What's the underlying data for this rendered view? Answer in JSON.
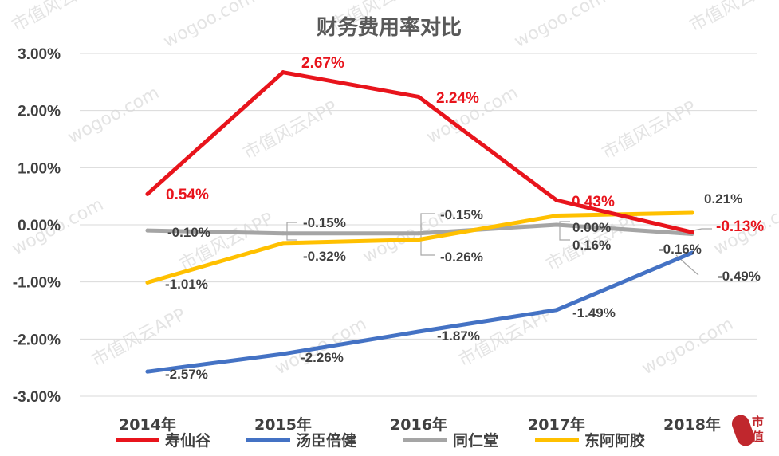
{
  "watermark": {
    "text": "市值风云APP",
    "site": "wogoo.com"
  },
  "logo": {
    "text": "市值"
  },
  "colors": {
    "寿仙谷": "#e8141c",
    "汤臣倍健": "#4472c4",
    "同仁堂": "#a5a5a5",
    "东阿阿胶": "#ffc000"
  },
  "chart_data": {
    "type": "line",
    "title": "财务费用率对比",
    "categories": [
      "2014年",
      "2015年",
      "2016年",
      "2017年",
      "2018年"
    ],
    "ylim": [
      -3.0,
      3.0
    ],
    "yticks": [
      "3.00%",
      "2.00%",
      "1.00%",
      "0.00%",
      "-1.00%",
      "-2.00%",
      "-3.00%"
    ],
    "grid": true,
    "legend_position": "bottom",
    "series": [
      {
        "name": "寿仙谷",
        "color": "#e8141c",
        "values": [
          0.54,
          2.67,
          2.24,
          0.43,
          -0.13
        ],
        "labels": [
          "0.54%",
          "2.67%",
          "2.24%",
          "0.43%",
          "-0.13%"
        ]
      },
      {
        "name": "汤臣倍健",
        "color": "#4472c4",
        "values": [
          -2.57,
          -2.26,
          -1.87,
          -1.49,
          -0.49
        ],
        "labels": [
          "-2.57%",
          "-2.26%",
          "-1.87%",
          "-1.49%",
          "-0.49%"
        ]
      },
      {
        "name": "同仁堂",
        "color": "#a5a5a5",
        "values": [
          -0.1,
          -0.15,
          -0.15,
          0.0,
          -0.16
        ],
        "labels": [
          "-0.10%",
          "-0.15%",
          "-0.15%",
          "0.00%",
          "-0.16%"
        ]
      },
      {
        "name": "东阿阿胶",
        "color": "#ffc000",
        "values": [
          -1.01,
          -0.32,
          -0.26,
          0.16,
          0.21
        ],
        "labels": [
          "-1.01%",
          "-0.32%",
          "-0.26%",
          "0.16%",
          "0.21%"
        ]
      }
    ]
  }
}
